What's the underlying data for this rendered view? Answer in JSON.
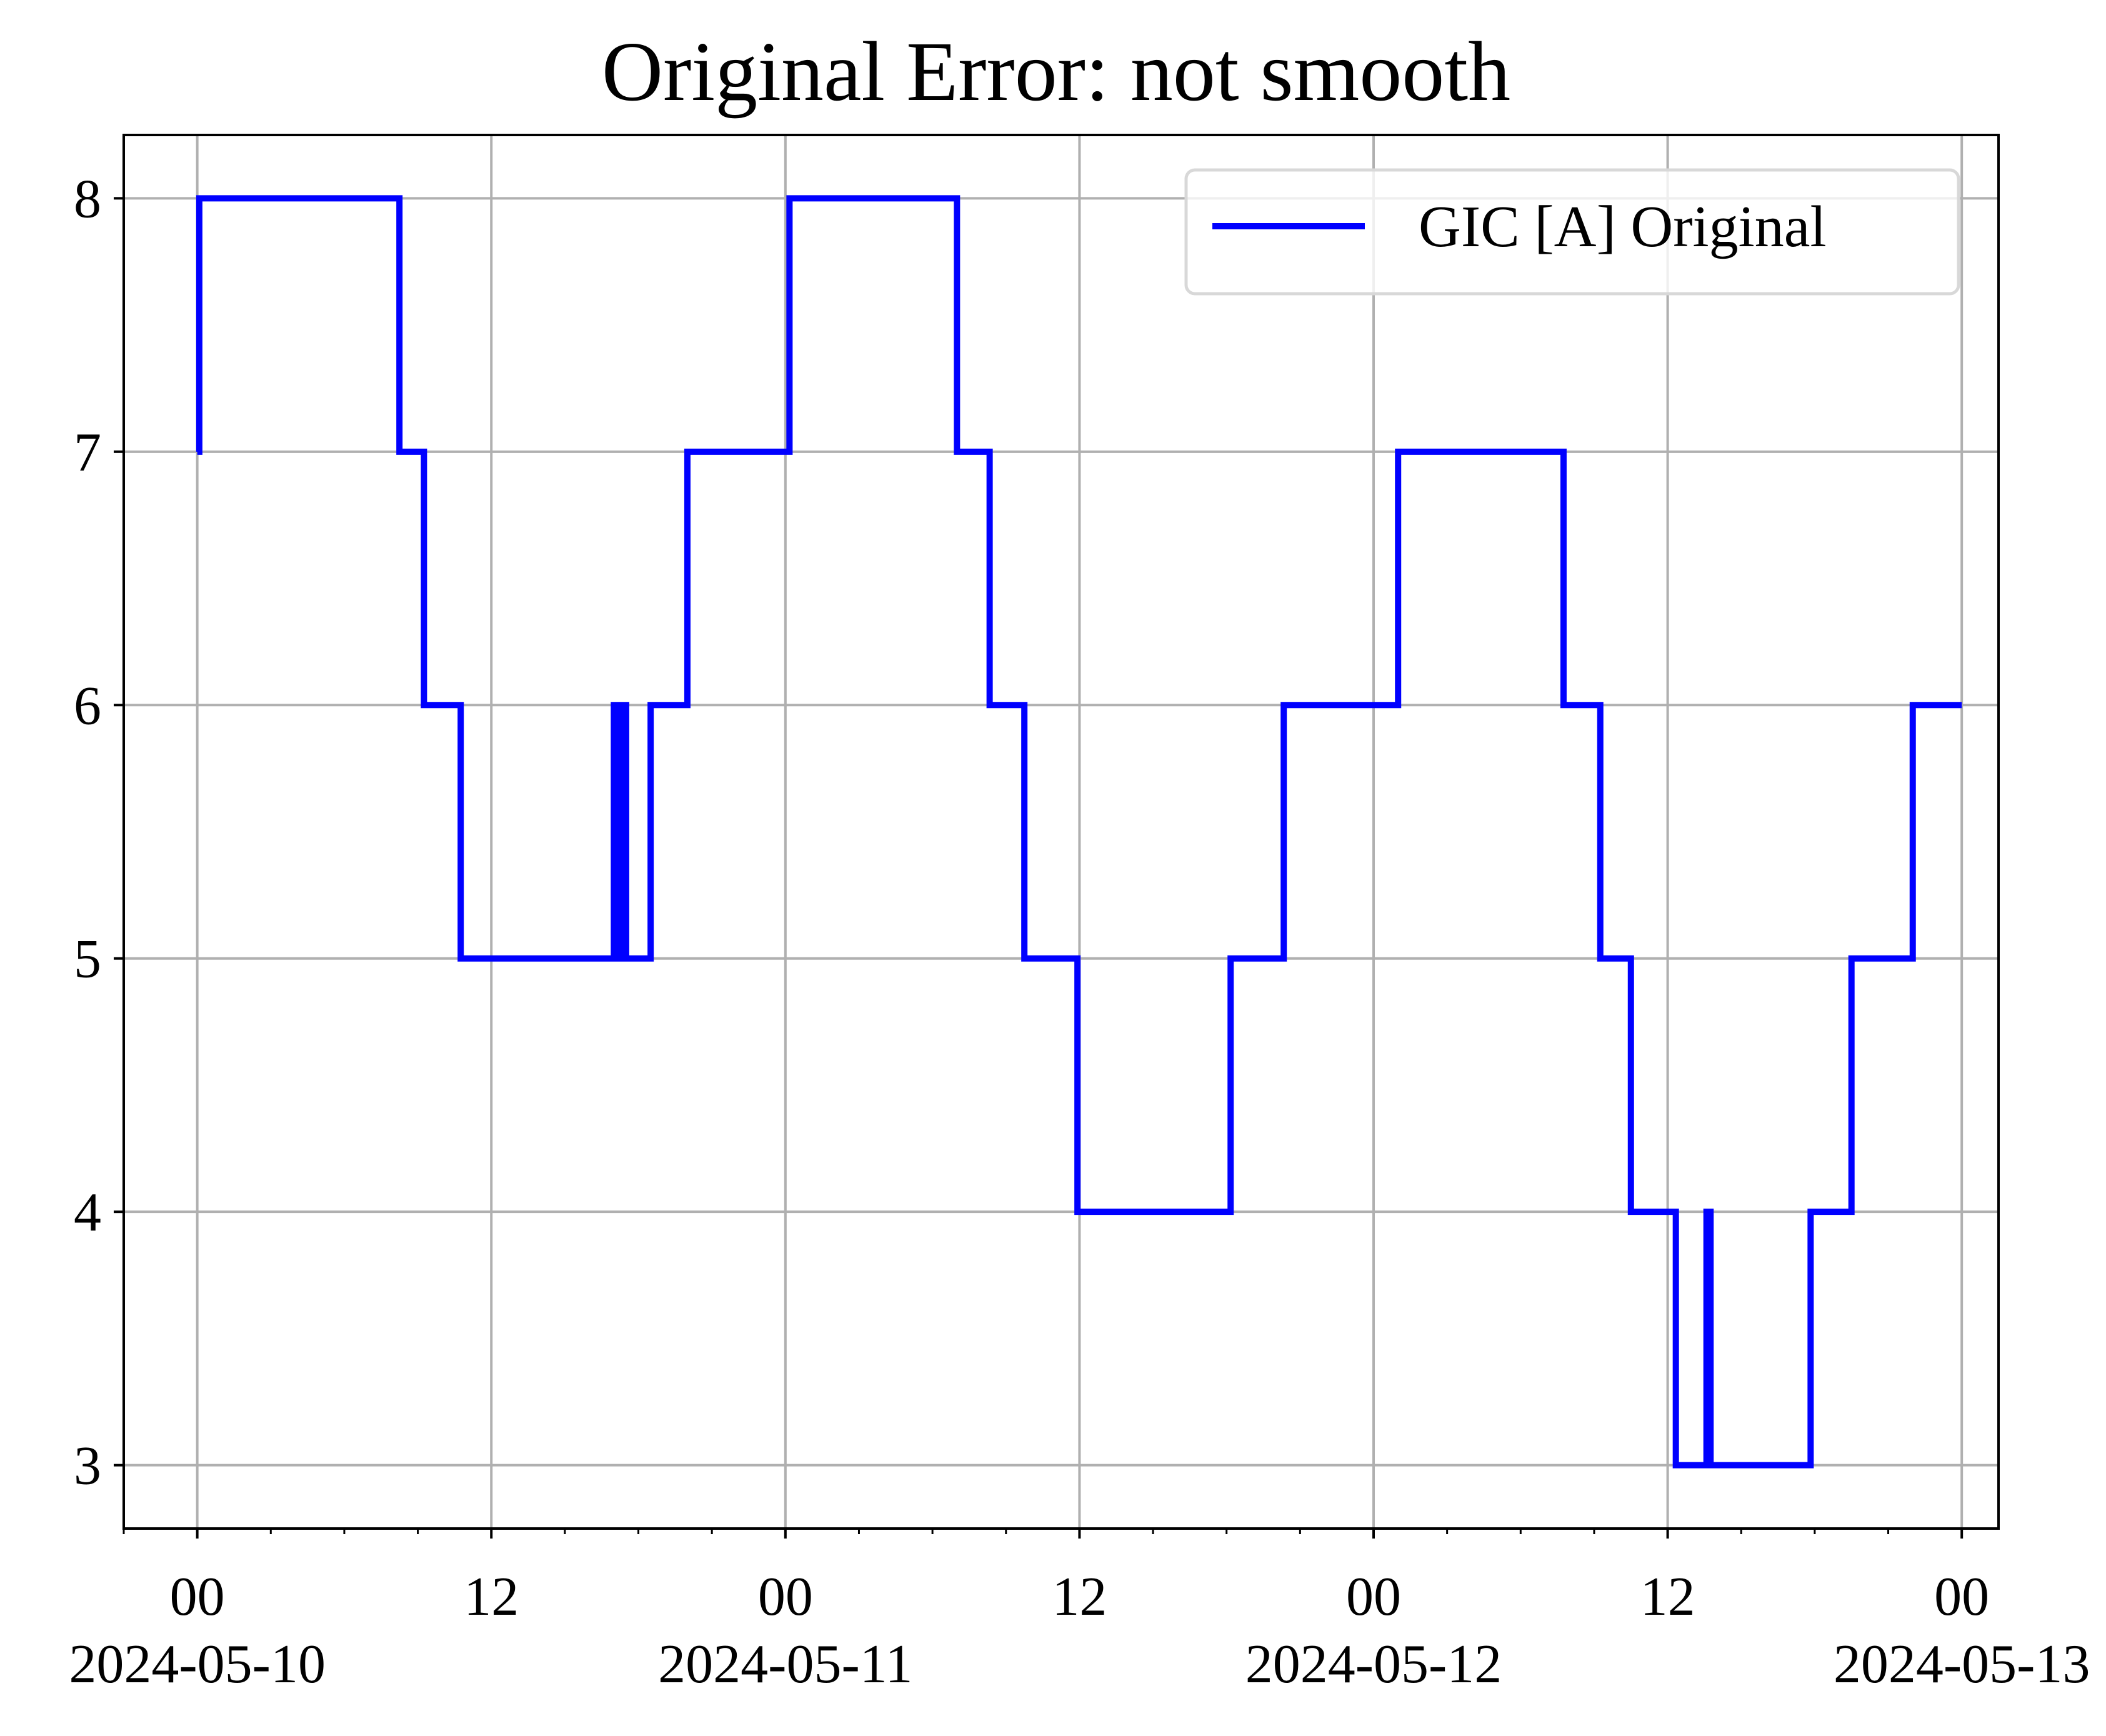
{
  "chart_data": {
    "type": "line",
    "title": "Original Error: not smooth",
    "xlabel": "",
    "ylabel": "",
    "x_range": [
      "2024-05-09 21:00",
      "2024-05-13 01:30"
    ],
    "ylim": [
      2.75,
      8.25
    ],
    "grid": true,
    "legend_position": "top-right",
    "y_ticks": [
      3,
      4,
      5,
      6,
      7,
      8
    ],
    "x_ticks": [
      {
        "hour": "00",
        "date": "2024-05-10"
      },
      {
        "hour": "12",
        "date": ""
      },
      {
        "hour": "00",
        "date": "2024-05-11"
      },
      {
        "hour": "12",
        "date": ""
      },
      {
        "hour": "00",
        "date": "2024-05-12"
      },
      {
        "hour": "12",
        "date": ""
      },
      {
        "hour": "00",
        "date": "2024-05-13"
      }
    ],
    "series": [
      {
        "name": "GIC [A] Original",
        "color": "#0000ff",
        "step": true,
        "points": [
          [
            "2024-05-10 00:00",
            7
          ],
          [
            "2024-05-10 00:05",
            8
          ],
          [
            "2024-05-10 08:15",
            7
          ],
          [
            "2024-05-10 09:15",
            6
          ],
          [
            "2024-05-10 10:45",
            5
          ],
          [
            "2024-05-10 17:00",
            6
          ],
          [
            "2024-05-10 17:10",
            5
          ],
          [
            "2024-05-10 17:20",
            6
          ],
          [
            "2024-05-10 17:30",
            5
          ],
          [
            "2024-05-10 18:30",
            6
          ],
          [
            "2024-05-10 20:00",
            7
          ],
          [
            "2024-05-11 00:10",
            8
          ],
          [
            "2024-05-11 07:00",
            7
          ],
          [
            "2024-05-11 08:20",
            6
          ],
          [
            "2024-05-11 09:45",
            5
          ],
          [
            "2024-05-11 11:55",
            4
          ],
          [
            "2024-05-11 18:10",
            5
          ],
          [
            "2024-05-11 20:20",
            6
          ],
          [
            "2024-05-12 01:00",
            7
          ],
          [
            "2024-05-12 07:45",
            6
          ],
          [
            "2024-05-12 09:15",
            5
          ],
          [
            "2024-05-12 10:30",
            4
          ],
          [
            "2024-05-12 12:20",
            3
          ],
          [
            "2024-05-12 13:35",
            4
          ],
          [
            "2024-05-12 13:45",
            3
          ],
          [
            "2024-05-12 17:50",
            4
          ],
          [
            "2024-05-12 19:30",
            5
          ],
          [
            "2024-05-12 22:00",
            6
          ],
          [
            "2024-05-13 00:00",
            6
          ]
        ]
      }
    ]
  }
}
